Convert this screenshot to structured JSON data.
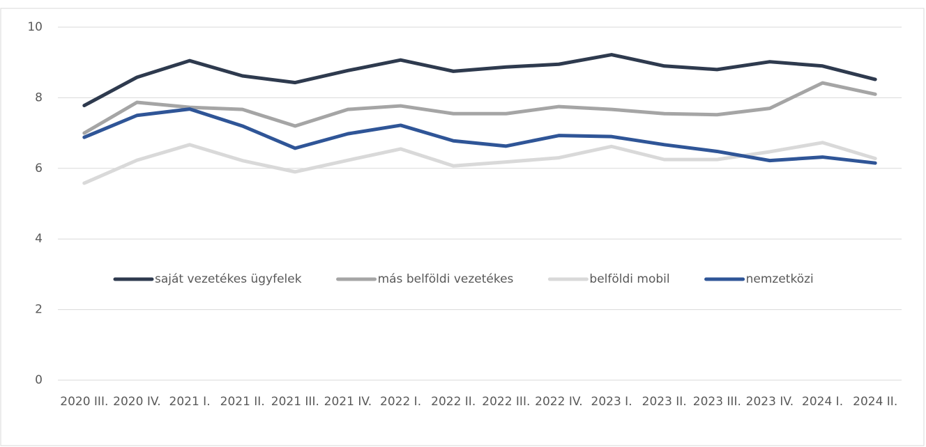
{
  "chart_data": {
    "type": "line",
    "categories": [
      "2020 III.",
      "2020 IV.",
      "2021 I.",
      "2021 II.",
      "2021 III.",
      "2021 IV.",
      "2022 I.",
      "2022 II.",
      "2022 III.",
      "2022 IV.",
      "2023 I.",
      "2023 II.",
      "2023 III.",
      "2023 IV.",
      "2024 I.",
      "2024 II."
    ],
    "series": [
      {
        "name": "saját vezetékes ügyfelek",
        "color": "#2e3a4e",
        "values": [
          7.78,
          8.58,
          9.05,
          8.62,
          8.43,
          8.77,
          9.07,
          8.75,
          8.87,
          8.95,
          9.22,
          8.9,
          8.8,
          9.02,
          8.9,
          8.52
        ]
      },
      {
        "name": "más belföldi vezetékes",
        "color": "#a5a5a5",
        "values": [
          7.0,
          7.87,
          7.73,
          7.67,
          7.2,
          7.67,
          7.77,
          7.55,
          7.55,
          7.75,
          7.67,
          7.55,
          7.52,
          7.7,
          8.42,
          8.1
        ]
      },
      {
        "name": "belföldi mobil",
        "color": "#d9d9d9",
        "values": [
          5.58,
          6.23,
          6.67,
          6.22,
          5.9,
          6.23,
          6.55,
          6.07,
          6.18,
          6.3,
          6.62,
          6.25,
          6.25,
          6.47,
          6.73,
          6.28
        ]
      },
      {
        "name": "nemzetközi",
        "color": "#2f5597",
        "values": [
          6.88,
          7.5,
          7.68,
          7.2,
          6.57,
          6.98,
          7.22,
          6.78,
          6.63,
          6.93,
          6.9,
          6.67,
          6.48,
          6.22,
          6.32,
          6.15
        ]
      }
    ],
    "ylim": [
      0,
      10
    ],
    "yticks": [
      0,
      2,
      4,
      6,
      8,
      10
    ],
    "grid": true,
    "legend": "center"
  }
}
